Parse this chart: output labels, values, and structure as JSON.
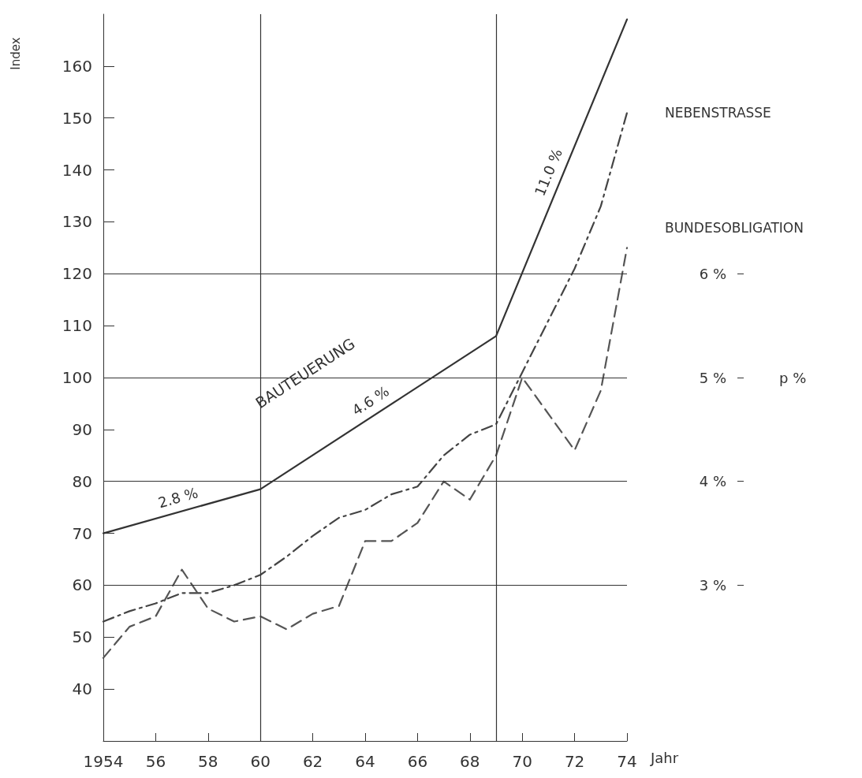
{
  "chart_data": {
    "type": "line",
    "xlabel": "Jahr",
    "ylabel": "Index",
    "y2label": "p %",
    "xlim": [
      1954,
      1974
    ],
    "xticks": [
      {
        "value": 1954,
        "label": "1954"
      },
      {
        "value": 1956,
        "label": "56"
      },
      {
        "value": 1958,
        "label": "58"
      },
      {
        "value": 1960,
        "label": "60"
      },
      {
        "value": 1962,
        "label": "62"
      },
      {
        "value": 1964,
        "label": "64"
      },
      {
        "value": 1966,
        "label": "66"
      },
      {
        "value": 1968,
        "label": "68"
      },
      {
        "value": 1970,
        "label": "70"
      },
      {
        "value": 1972,
        "label": "72"
      },
      {
        "value": 1974,
        "label": "74"
      }
    ],
    "ylim": [
      30,
      170
    ],
    "yticks": [
      40,
      50,
      60,
      70,
      80,
      90,
      100,
      110,
      120,
      130,
      140,
      150,
      160
    ],
    "y2lim": [
      1.5,
      8.5
    ],
    "y2ticks": [
      {
        "value": 3,
        "label": "3 %"
      },
      {
        "value": 4,
        "label": "4 %"
      },
      {
        "value": 5,
        "label": "5 %"
      },
      {
        "value": 6,
        "label": "6 %"
      }
    ],
    "grid": false,
    "legend": false,
    "marker": "none",
    "series": [
      {
        "name": "BAUTEUERUNG",
        "color": "#333333",
        "line_style": "solid",
        "x": [
          1954,
          1960,
          1969,
          1974
        ],
        "values": [
          70,
          78.5,
          108,
          169
        ]
      },
      {
        "name": "NEBENSTRASSE",
        "color": "#444444",
        "line_style": "dashdot",
        "x": [
          1954,
          1955,
          1956,
          1957,
          1958,
          1959,
          1960,
          1961,
          1962,
          1963,
          1964,
          1965,
          1966,
          1967,
          1968,
          1969,
          1970,
          1971,
          1972,
          1973,
          1974
        ],
        "values": [
          53,
          55,
          56.5,
          58.5,
          58.5,
          60,
          62,
          65.5,
          69.5,
          73,
          74.5,
          77.5,
          79,
          85,
          89,
          91,
          101,
          111,
          121,
          133,
          151
        ]
      },
      {
        "name": "BUNDESOBLIGATION",
        "color": "#555555",
        "line_style": "dashed",
        "x": [
          1954,
          1955,
          1956,
          1957,
          1958,
          1959,
          1960,
          1961,
          1962,
          1963,
          1964,
          1965,
          1966,
          1967,
          1968,
          1969,
          1970,
          1971,
          1972,
          1973,
          1974
        ],
        "values": [
          46,
          52,
          54,
          63,
          55.5,
          53,
          54,
          51.5,
          54.5,
          56,
          68.5,
          68.5,
          72,
          80,
          76.5,
          85,
          100,
          93,
          86,
          97.5,
          125
        ]
      }
    ],
    "ref_lines": [
      {
        "axis": "x",
        "value": 1960,
        "color": "#333333"
      },
      {
        "axis": "x",
        "value": 1969,
        "color": "#333333"
      },
      {
        "axis": "y2",
        "value": 3,
        "color": "#333333"
      },
      {
        "axis": "y2",
        "value": 4,
        "color": "#333333"
      },
      {
        "axis": "y2",
        "value": 5,
        "color": "#333333"
      },
      {
        "axis": "y2",
        "value": 6,
        "color": "#333333"
      }
    ],
    "annotations": [
      "2.8 %",
      "4.6 %",
      "11.0 %"
    ]
  }
}
